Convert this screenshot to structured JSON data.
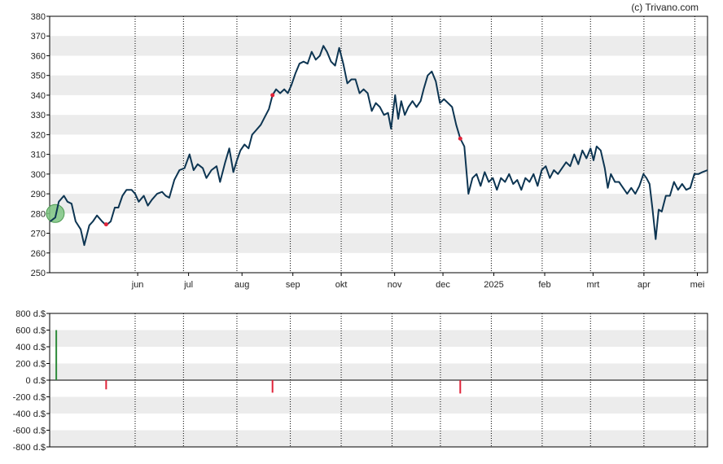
{
  "credit": "(c) Trivano.com",
  "colors": {
    "price_line": "#0d3552",
    "band": "#ececec",
    "grid": "#000000",
    "buy": "#2e8b3a",
    "sell": "#e0243a",
    "highlight_fill": "#7dc481"
  },
  "chart_data": [
    {
      "type": "line",
      "ylim": [
        250,
        380
      ],
      "yticks": [
        250,
        260,
        270,
        280,
        290,
        300,
        310,
        320,
        330,
        340,
        350,
        360,
        370,
        380
      ],
      "ytick_labels": [
        "250",
        "260",
        "270",
        "280",
        "290",
        "300",
        "310",
        "320",
        "330",
        "340",
        "350",
        "360",
        "370",
        "380"
      ],
      "x_labels": [
        "jun",
        "jul",
        "aug",
        "sep",
        "okt",
        "nov",
        "dec",
        "2025",
        "feb",
        "mrt",
        "apr",
        "mei"
      ],
      "x_label_pos": [
        1.0,
        2.0,
        3.05,
        4.05,
        5.0,
        6.05,
        7.0,
        8.0,
        9.0,
        9.95,
        10.95,
        12.0
      ],
      "vlines": [
        0.95,
        1.9,
        2.95,
        4.0,
        5.0,
        6.0,
        6.95,
        7.95,
        8.95,
        9.9,
        10.95,
        11.95
      ],
      "xrange": [
        -0.73,
        12.2
      ],
      "series": [
        {
          "points": [
            [
              -0.72,
              276
            ],
            [
              -0.62,
              278
            ],
            [
              -0.55,
              286
            ],
            [
              -0.45,
              289
            ],
            [
              -0.38,
              286
            ],
            [
              -0.3,
              285
            ],
            [
              -0.22,
              276
            ],
            [
              -0.12,
              272
            ],
            [
              -0.05,
              264
            ],
            [
              0.05,
              274
            ],
            [
              0.12,
              276
            ],
            [
              0.2,
              279
            ],
            [
              0.3,
              276
            ],
            [
              0.38,
              274
            ],
            [
              0.47,
              276
            ],
            [
              0.55,
              283
            ],
            [
              0.62,
              283
            ],
            [
              0.7,
              289
            ],
            [
              0.78,
              292
            ],
            [
              0.88,
              292
            ],
            [
              0.95,
              290
            ],
            [
              1.02,
              286
            ],
            [
              1.12,
              289
            ],
            [
              1.2,
              284
            ],
            [
              1.28,
              287
            ],
            [
              1.38,
              290
            ],
            [
              1.48,
              291
            ],
            [
              1.55,
              289
            ],
            [
              1.62,
              288
            ],
            [
              1.72,
              297
            ],
            [
              1.82,
              302
            ],
            [
              1.92,
              303
            ],
            [
              2.02,
              310
            ],
            [
              2.1,
              302
            ],
            [
              2.18,
              305
            ],
            [
              2.28,
              303
            ],
            [
              2.35,
              298
            ],
            [
              2.45,
              302
            ],
            [
              2.55,
              304
            ],
            [
              2.62,
              296
            ],
            [
              2.72,
              306
            ],
            [
              2.8,
              313
            ],
            [
              2.88,
              301
            ],
            [
              2.95,
              307
            ],
            [
              3.02,
              312
            ],
            [
              3.1,
              315
            ],
            [
              3.18,
              313
            ],
            [
              3.25,
              320
            ],
            [
              3.32,
              322
            ],
            [
              3.42,
              325
            ],
            [
              3.5,
              329
            ],
            [
              3.58,
              333
            ],
            [
              3.65,
              340
            ],
            [
              3.72,
              343
            ],
            [
              3.8,
              341
            ],
            [
              3.88,
              343
            ],
            [
              3.95,
              341
            ],
            [
              4.02,
              345
            ],
            [
              4.1,
              351
            ],
            [
              4.18,
              356
            ],
            [
              4.26,
              357
            ],
            [
              4.34,
              356
            ],
            [
              4.42,
              362
            ],
            [
              4.5,
              358
            ],
            [
              4.58,
              360
            ],
            [
              4.65,
              365
            ],
            [
              4.72,
              362
            ],
            [
              4.8,
              357
            ],
            [
              4.88,
              355
            ],
            [
              4.96,
              364
            ],
            [
              5.04,
              356
            ],
            [
              5.12,
              346
            ],
            [
              5.2,
              348
            ],
            [
              5.28,
              348
            ],
            [
              5.36,
              341
            ],
            [
              5.44,
              343
            ],
            [
              5.52,
              341
            ],
            [
              5.6,
              332
            ],
            [
              5.68,
              336
            ],
            [
              5.76,
              334
            ],
            [
              5.84,
              330
            ],
            [
              5.92,
              331
            ],
            [
              5.98,
              323
            ],
            [
              6.06,
              340
            ],
            [
              6.12,
              328
            ],
            [
              6.18,
              337
            ],
            [
              6.25,
              330
            ],
            [
              6.32,
              334
            ],
            [
              6.4,
              337
            ],
            [
              6.48,
              334
            ],
            [
              6.56,
              337
            ],
            [
              6.62,
              343
            ],
            [
              6.7,
              350
            ],
            [
              6.78,
              352
            ],
            [
              6.86,
              347
            ],
            [
              6.94,
              336
            ],
            [
              7.02,
              338
            ],
            [
              7.1,
              336
            ],
            [
              7.18,
              334
            ],
            [
              7.26,
              325
            ],
            [
              7.34,
              318
            ],
            [
              7.42,
              314
            ],
            [
              7.5,
              290
            ],
            [
              7.58,
              298
            ],
            [
              7.66,
              300
            ],
            [
              7.74,
              294
            ],
            [
              7.82,
              301
            ],
            [
              7.9,
              296
            ],
            [
              7.98,
              298
            ],
            [
              8.06,
              292
            ],
            [
              8.14,
              298
            ],
            [
              8.22,
              296
            ],
            [
              8.3,
              300
            ],
            [
              8.38,
              295
            ],
            [
              8.46,
              297
            ],
            [
              8.54,
              292
            ],
            [
              8.62,
              298
            ],
            [
              8.7,
              296
            ],
            [
              8.78,
              300
            ],
            [
              8.86,
              294
            ],
            [
              8.94,
              302
            ],
            [
              9.02,
              304
            ],
            [
              9.1,
              298
            ],
            [
              9.18,
              302
            ],
            [
              9.26,
              300
            ],
            [
              9.34,
              303
            ],
            [
              9.42,
              306
            ],
            [
              9.5,
              304
            ],
            [
              9.58,
              310
            ],
            [
              9.66,
              305
            ],
            [
              9.74,
              312
            ],
            [
              9.82,
              308
            ],
            [
              9.9,
              313
            ],
            [
              9.96,
              307
            ],
            [
              10.02,
              314
            ],
            [
              10.1,
              312
            ],
            [
              10.18,
              303
            ],
            [
              10.24,
              293
            ],
            [
              10.3,
              300
            ],
            [
              10.38,
              296
            ],
            [
              10.46,
              296
            ],
            [
              10.54,
              293
            ],
            [
              10.62,
              290
            ],
            [
              10.7,
              293
            ],
            [
              10.78,
              290
            ],
            [
              10.86,
              294
            ],
            [
              10.94,
              300
            ],
            [
              11.0,
              298
            ],
            [
              11.06,
              295
            ],
            [
              11.12,
              282
            ],
            [
              11.18,
              267
            ],
            [
              11.24,
              282
            ],
            [
              11.3,
              281
            ],
            [
              11.38,
              289
            ],
            [
              11.46,
              289
            ],
            [
              11.54,
              296
            ],
            [
              11.62,
              292
            ],
            [
              11.7,
              295
            ],
            [
              11.78,
              292
            ],
            [
              11.86,
              293
            ],
            [
              11.94,
              300
            ],
            [
              12.02,
              300
            ],
            [
              12.1,
              301
            ],
            [
              12.2,
              302
            ]
          ]
        }
      ],
      "markers": [
        {
          "x": 0.38,
          "y": 274.5,
          "color": "sell"
        },
        {
          "x": 3.65,
          "y": 340,
          "color": "sell"
        },
        {
          "x": 7.34,
          "y": 318,
          "color": "sell"
        }
      ],
      "highlight": {
        "x": -0.62,
        "y": 280
      }
    },
    {
      "type": "bar",
      "ylim": [
        -800,
        800
      ],
      "yticks": [
        -800,
        -600,
        -400,
        -200,
        0,
        200,
        400,
        600,
        800
      ],
      "ytick_labels": [
        "-800 d.$",
        "-600 d.$",
        "-400 d.$",
        "-200 d.$",
        "0 d.$",
        "200 d.$",
        "400 d.$",
        "600 d.$",
        "800 d.$"
      ],
      "bars": [
        {
          "x": -0.6,
          "value": 600,
          "color": "buy"
        },
        {
          "x": 0.38,
          "value": -110,
          "color": "sell"
        },
        {
          "x": 3.65,
          "value": -150,
          "color": "sell"
        },
        {
          "x": 7.34,
          "value": -160,
          "color": "sell"
        }
      ]
    }
  ]
}
